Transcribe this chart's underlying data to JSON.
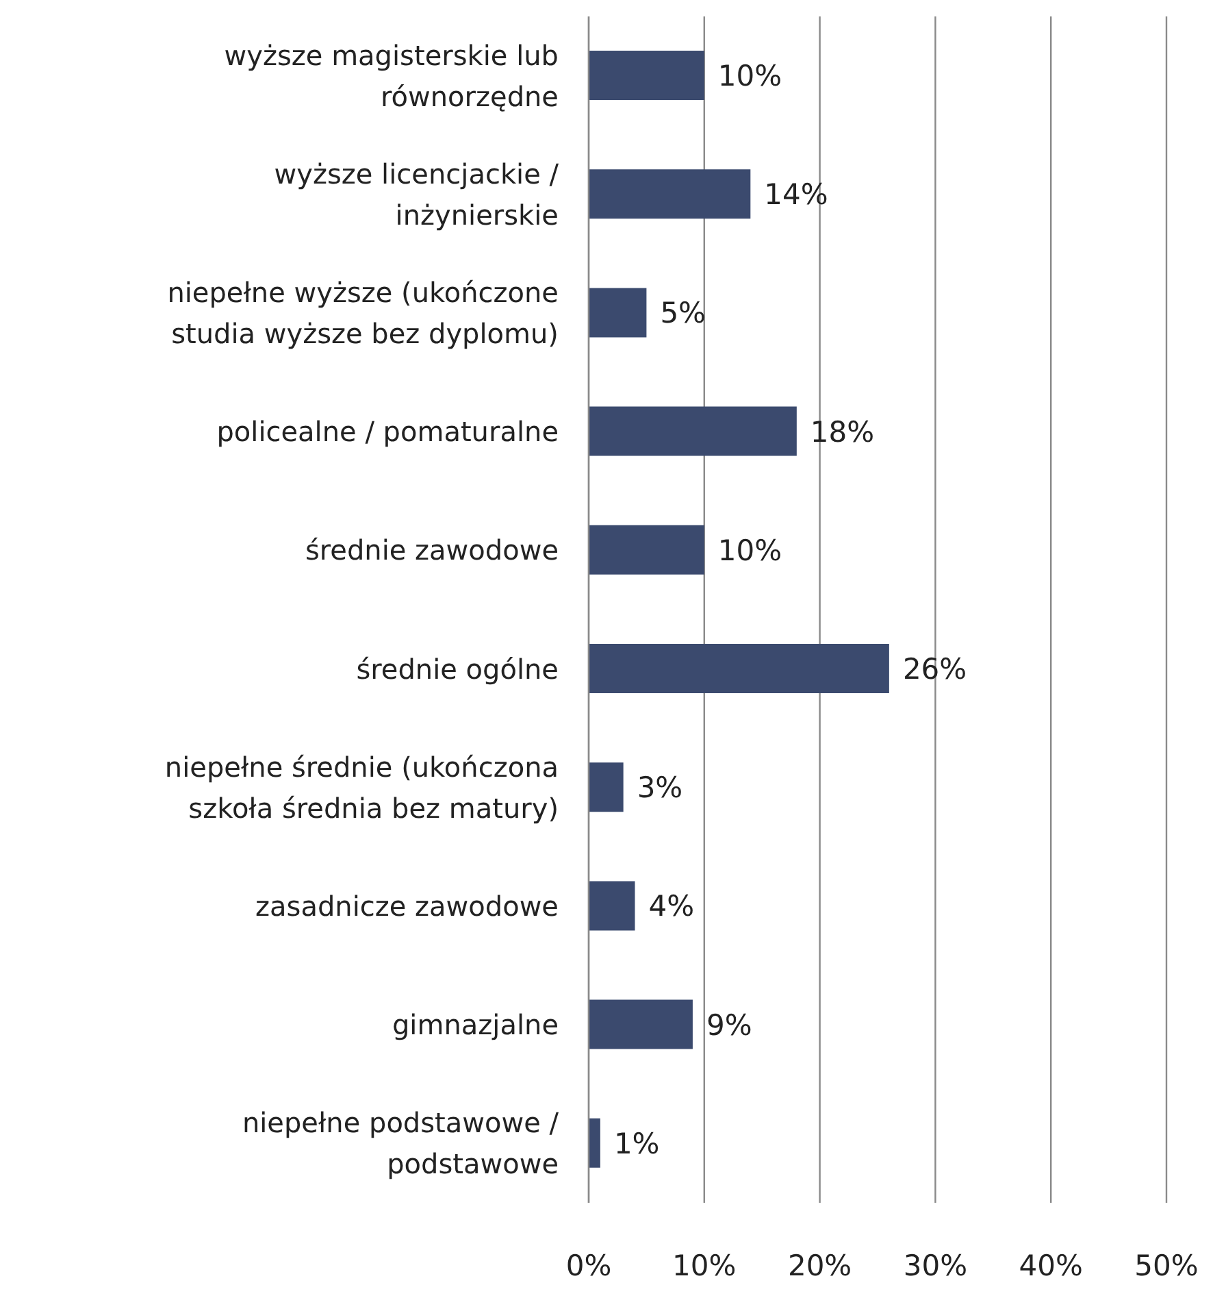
{
  "chart_data": {
    "type": "bar",
    "orientation": "horizontal",
    "categories": [
      "wyższe magisterskie lub równorzędne",
      "wyższe licencjackie / inżynierskie",
      "niepełne wyższe (ukończone studia wyższe bez dyplomu)",
      "policealne / pomaturalne",
      "średnie zawodowe",
      "średnie ogólne",
      "niepełne średnie (ukończona szkoła średnia bez matury)",
      "zasadnicze zawodowe",
      "gimnazjalne",
      "niepełne podstawowe / podstawowe"
    ],
    "values": [
      10,
      14,
      5,
      18,
      10,
      26,
      3,
      4,
      9,
      1
    ],
    "value_labels": [
      "10%",
      "14%",
      "5%",
      "18%",
      "10%",
      "26%",
      "3%",
      "4%",
      "9%",
      "1%"
    ],
    "color": "#3b4a6e",
    "xlim": [
      0,
      50
    ],
    "xticks": [
      {
        "value": 0,
        "label": "0%"
      },
      {
        "value": 10,
        "label": "10%"
      },
      {
        "value": 20,
        "label": "20%"
      },
      {
        "value": 30,
        "label": "30%"
      },
      {
        "value": 40,
        "label": "40%"
      },
      {
        "value": 50,
        "label": "50%"
      }
    ],
    "grid": "x"
  }
}
